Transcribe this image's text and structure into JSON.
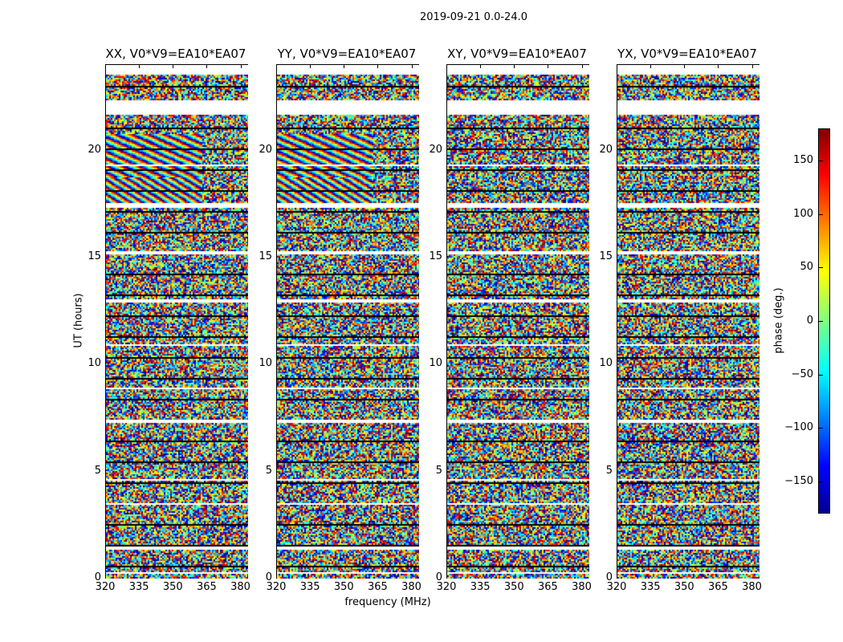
{
  "chart_data": {
    "type": "heatmap",
    "title": "2019-09-21 0.0-24.0",
    "xlabel": "frequency (MHz)",
    "ylabel": "UT (hours)",
    "xlim": [
      320,
      383
    ],
    "ylim": [
      0,
      24
    ],
    "xticks": [
      320,
      335,
      350,
      365,
      380
    ],
    "yticks": [
      0,
      5,
      10,
      15,
      20
    ],
    "panels": [
      {
        "title": "XX, V0*V9=EA10*EA07",
        "fringes": true
      },
      {
        "title": "YY, V0*V9=EA10*EA07",
        "fringes": true
      },
      {
        "title": "XY, V0*V9=EA10*EA07",
        "fringes": false
      },
      {
        "title": "YX, V0*V9=EA10*EA07",
        "fringes": false
      }
    ],
    "flagged_hours": [
      [
        21.75,
        22.35
      ],
      [
        23.7,
        24
      ],
      [
        17.4,
        17.6
      ],
      [
        12.95,
        13.05
      ],
      [
        10.9,
        11.0
      ],
      [
        7.3,
        7.45
      ],
      [
        4.6,
        4.7
      ],
      [
        1.4,
        1.5
      ],
      [
        0.25,
        0.35
      ],
      [
        19.3,
        19.35
      ],
      [
        15.2,
        15.3
      ],
      [
        8.9,
        8.95
      ],
      [
        3.5,
        3.55
      ]
    ],
    "colorbar": {
      "label": "phase (deg.)",
      "range": [
        -180,
        180
      ],
      "ticks": [
        150,
        100,
        50,
        0,
        -50,
        -100,
        -150
      ],
      "tick_labels": [
        "150",
        "100",
        "50",
        "0",
        "−50",
        "−100",
        "−150"
      ],
      "colormap": "jet"
    }
  }
}
